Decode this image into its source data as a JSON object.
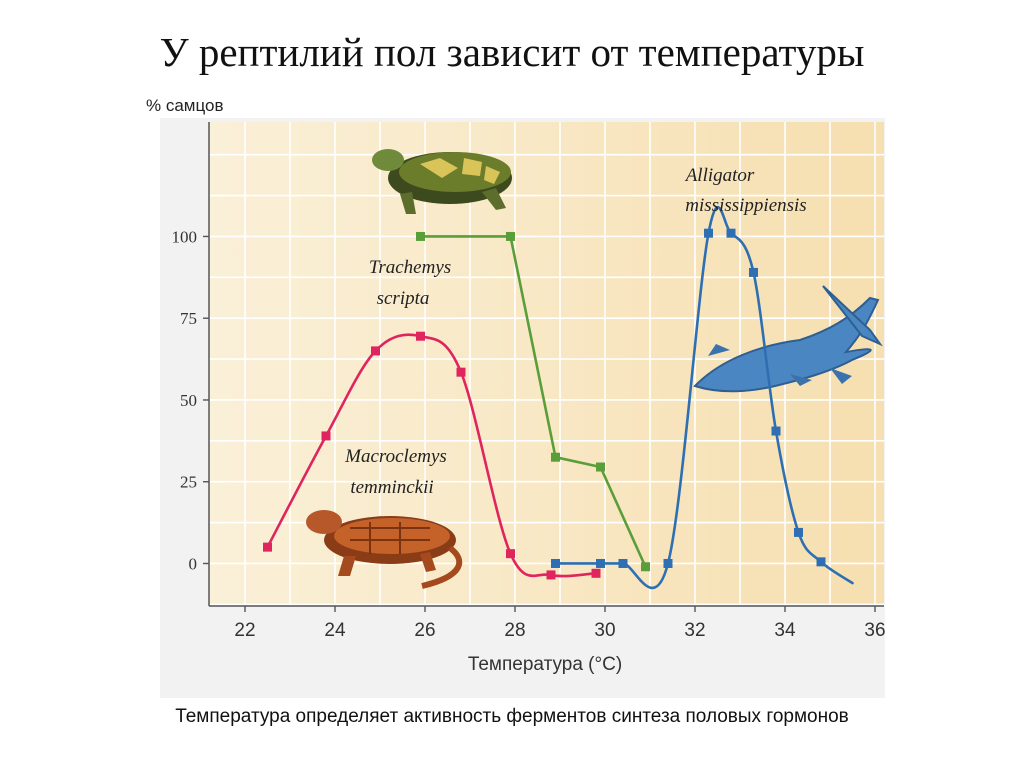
{
  "slide": {
    "title": "У рептилий пол зависит от температуры",
    "caption": "Температура определяет активность ферментов синтеза половых гормонов"
  },
  "chart_data": {
    "type": "line",
    "ylabel": "% самцов",
    "xlabel": "Температура (°C)",
    "xlim": [
      21.2,
      36.2
    ],
    "ylim": [
      -13,
      135
    ],
    "x_ticks": [
      22,
      24,
      26,
      28,
      30,
      32,
      34,
      36
    ],
    "y_ticks": [
      0,
      25,
      50,
      75,
      100
    ],
    "grid": true,
    "colors": {
      "background": "#f7e9c8",
      "grid": "#ffffff",
      "axis": "#555555",
      "shadow": "#eeeeee"
    },
    "series": [
      {
        "name": "Macroclemys temminckii",
        "label_lines": [
          "Macroclemys",
          "temminckii"
        ],
        "color": "#e0245e",
        "smooth": true,
        "points": [
          [
            22.5,
            5
          ],
          [
            23.8,
            39
          ],
          [
            24.9,
            65
          ],
          [
            25.9,
            69.5
          ],
          [
            26.8,
            58.5
          ],
          [
            27.9,
            3
          ],
          [
            28.8,
            -3.5
          ],
          [
            29.8,
            -3
          ]
        ]
      },
      {
        "name": "Trachemys scripta",
        "label_lines": [
          "Trachemys",
          "scripta"
        ],
        "color": "#5a9e3a",
        "smooth": false,
        "points": [
          [
            25.9,
            100
          ],
          [
            27.9,
            100
          ],
          [
            28.9,
            32.5
          ],
          [
            29.9,
            29.5
          ],
          [
            30.9,
            -1
          ]
        ]
      },
      {
        "name": "Alligator mississippiensis",
        "label_lines": [
          "Alligator",
          "mississippiensis"
        ],
        "color": "#2e6fb3",
        "smooth": true,
        "points": [
          [
            28.9,
            0
          ],
          [
            29.9,
            0
          ],
          [
            30.4,
            0
          ],
          [
            31.4,
            0
          ],
          [
            32.3,
            101
          ],
          [
            32.8,
            101
          ],
          [
            33.3,
            89
          ],
          [
            33.8,
            40.5
          ],
          [
            34.3,
            9.5
          ],
          [
            34.8,
            0.5
          ],
          [
            35.5,
            -6
          ]
        ],
        "markers_exclude_last": true
      }
    ]
  }
}
